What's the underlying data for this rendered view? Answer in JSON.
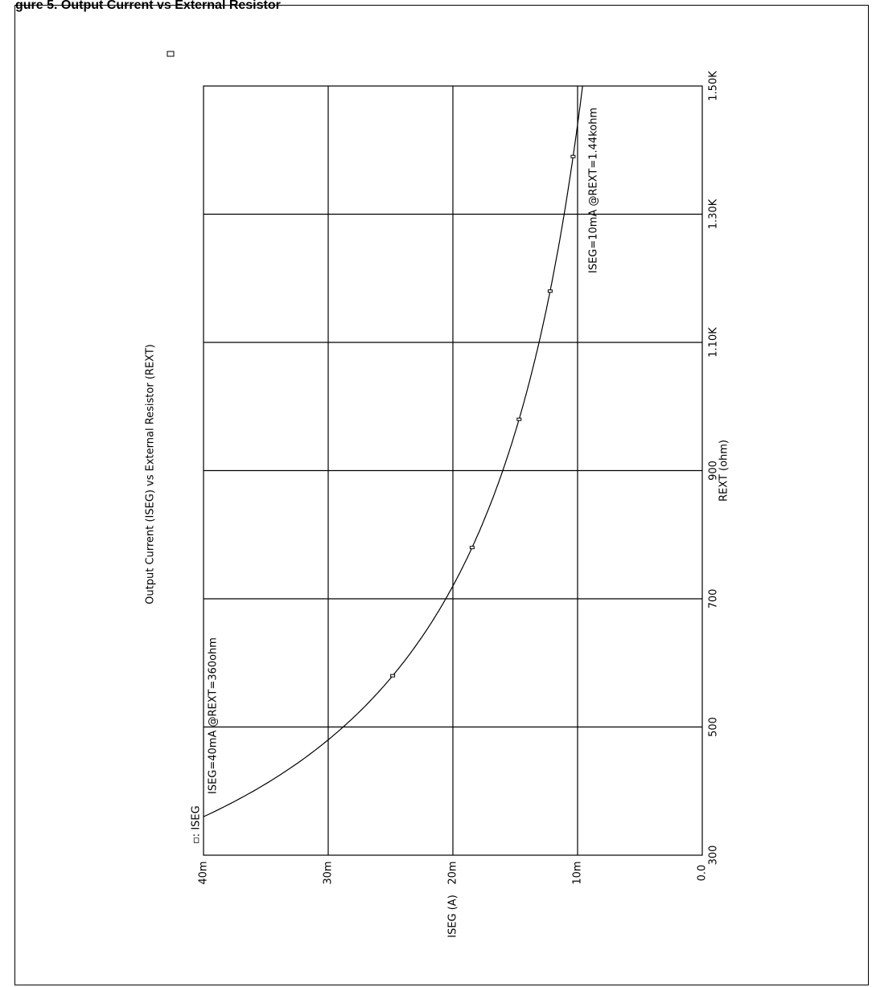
{
  "page": {
    "title": "gure 5. Output Current vs External Resistor"
  },
  "chart_data": {
    "type": "line",
    "orientation": "rotated-90-ccw",
    "title": "Output Current (ISEG) vs External Resistor (REXT)",
    "xlabel": "REXT (ohm)",
    "ylabel": "ISEG (A)",
    "xlim": [
      300,
      1500
    ],
    "ylim": [
      0,
      0.04
    ],
    "x_ticks": [
      "300",
      "500",
      "700",
      "900",
      "1.10K",
      "1.30K",
      "1.50K"
    ],
    "y_ticks": [
      "0.0",
      "10m",
      "20m",
      "30m",
      "40m"
    ],
    "grid": true,
    "legend": [
      {
        "symbol": "▫",
        "label": "ISEG"
      }
    ],
    "series": [
      {
        "name": "ISEG",
        "x": [
          360,
          400,
          450,
          500,
          550,
          600,
          650,
          700,
          750,
          800,
          900,
          1000,
          1100,
          1200,
          1300,
          1400,
          1440,
          1500
        ],
        "y": [
          0.04,
          0.036,
          0.032,
          0.0288,
          0.0262,
          0.024,
          0.02215,
          0.02057,
          0.0192,
          0.018,
          0.016,
          0.0144,
          0.01309,
          0.012,
          0.01108,
          0.01029,
          0.01,
          0.0096
        ],
        "markers_x": [
          580,
          780,
          980,
          1180,
          1390
        ],
        "markers_y": [
          0.02483,
          0.01846,
          0.01469,
          0.0122,
          0.01036
        ]
      }
    ],
    "annotations": [
      "ISEG=40mA @REXT=360ohm",
      "ISEG=10mA @REXT=1.44kohm"
    ]
  }
}
